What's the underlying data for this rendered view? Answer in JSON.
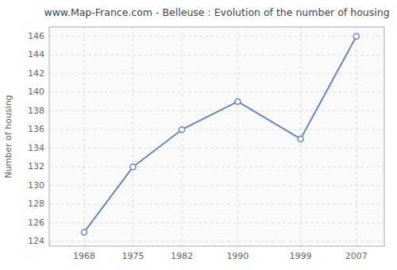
{
  "chart_data": {
    "type": "line",
    "title": "www.Map-France.com - Belleuse : Evolution of the number of housing",
    "y_label": "Number of housing",
    "x": [
      1968,
      1975,
      1982,
      1990,
      1999,
      2007
    ],
    "values": [
      125,
      132,
      136,
      139,
      135,
      146
    ],
    "xlim": [
      1963,
      2011
    ],
    "xticks": [
      1968,
      1975,
      1982,
      1990,
      1999,
      2007
    ],
    "ylim": [
      123.5,
      147
    ],
    "yticks": [
      124,
      126,
      128,
      130,
      132,
      134,
      136,
      138,
      140,
      142,
      144,
      146
    ],
    "color": "#6688bb",
    "marker": "circle",
    "grid": true
  }
}
